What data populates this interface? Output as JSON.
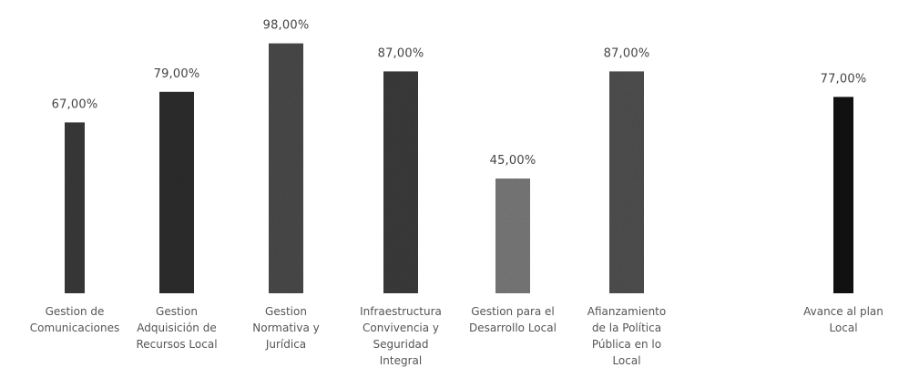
{
  "chart_data": {
    "type": "bar",
    "title": "",
    "xlabel": "",
    "ylabel": "",
    "ylim": [
      0,
      100
    ],
    "grid": false,
    "legend": "none",
    "categories": [
      "Gestion de Comunicaciones",
      "Gestion Adquisición de Recursos Local",
      "Gestion Normativa y Jurídica",
      "Infraestructura Convivencia y Seguridad Integral",
      "Gestion para el Desarrollo Local",
      "Afianzamiento de la Política Pública en lo Local",
      "Avance al plan Local"
    ],
    "category_lines": [
      [
        "Gestion de",
        "Comunicaciones"
      ],
      [
        "Gestion",
        "Adquisición de",
        "Recursos Local"
      ],
      [
        "Gestion",
        "Normativa y",
        "Jurídica"
      ],
      [
        "Infraestructura",
        "Convivencia y",
        "Seguridad",
        "Integral"
      ],
      [
        "Gestion para el",
        "Desarrollo Local"
      ],
      [
        "Afianzamiento",
        "de la Política",
        "Pública en lo",
        "Local"
      ],
      [
        "Avance al plan",
        "Local"
      ]
    ],
    "values": [
      67,
      79,
      98,
      87,
      45,
      87,
      77
    ],
    "value_labels": [
      "67,00%",
      "79,00%",
      "98,00%",
      "87,00%",
      "45,00%",
      "87,00%",
      "77,00%"
    ],
    "bar_colors": [
      "#3a3a3a",
      "#2e2e2e",
      "#4a4a4a",
      "#3c3c3c",
      "#7a7a7a",
      "#505050",
      "#111111"
    ]
  }
}
